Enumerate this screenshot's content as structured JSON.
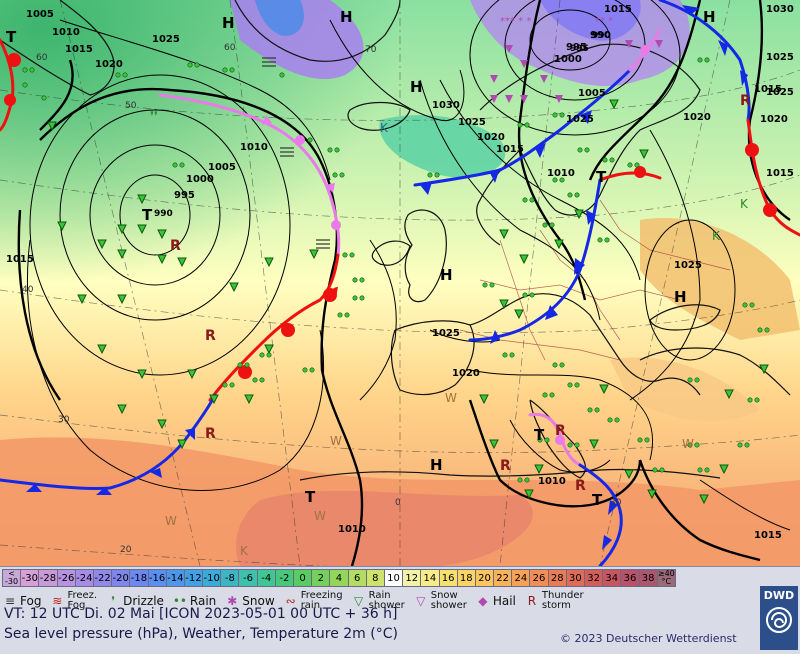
{
  "map": {
    "isobar_labels": [
      "1005",
      "1010",
      "1015",
      "1020",
      "1025",
      "1025",
      "1020",
      "1010",
      "1000",
      "995",
      "990",
      "1005",
      "995",
      "1000",
      "1005",
      "1030",
      "1025",
      "1020",
      "1015",
      "1010",
      "1020",
      "1025",
      "1030",
      "1025",
      "1015",
      "1010",
      "1015",
      "1025",
      "1020",
      "1015",
      "1025",
      "1010",
      "1015",
      "1015"
    ],
    "pressure_centers": [
      "H",
      "H",
      "H",
      "H",
      "H",
      "H",
      "H",
      "T",
      "T",
      "T",
      "T",
      "T",
      "T"
    ],
    "center_values": [
      "990",
      "995",
      "990"
    ],
    "temp_labels": [
      "60",
      "50",
      "40",
      "30",
      "20",
      "60",
      "70",
      "0",
      "30"
    ],
    "colors": {
      "front_warm": "#ee1111",
      "front_cold": "#1428e6",
      "front_occluded": "#e87be8",
      "isobar": "#000000"
    }
  },
  "legend": {
    "scale_low": "<\n-30",
    "scale": [
      "-30",
      "-28",
      "-26",
      "-24",
      "-22",
      "-20",
      "-18",
      "-16",
      "-14",
      "-12",
      "-10",
      "-8",
      "-6",
      "-4",
      "-2",
      "0",
      "2",
      "4",
      "6",
      "8",
      "10",
      "12",
      "14",
      "16",
      "18",
      "20",
      "22",
      "24",
      "26",
      "28",
      "30",
      "32",
      "34",
      "36",
      "38"
    ],
    "scale_high": "≥40\n°C",
    "weather": [
      {
        "icon": "fog-icon",
        "label": "Fog"
      },
      {
        "icon": "freezing-fog-icon",
        "label": "Freez.\nFog"
      },
      {
        "icon": "drizzle-icon",
        "label": "Drizzle"
      },
      {
        "icon": "rain-icon",
        "label": "Rain"
      },
      {
        "icon": "snow-icon",
        "label": "Snow"
      },
      {
        "icon": "freezing-rain-icon",
        "label": "Freezing\nrain"
      },
      {
        "icon": "rain-shower-icon",
        "label": "Rain\nshower"
      },
      {
        "icon": "snow-shower-icon",
        "label": "Snow\nshower"
      },
      {
        "icon": "hail-icon",
        "label": "Hail"
      },
      {
        "icon": "thunderstorm-icon",
        "label": "Thunder\nstorm"
      }
    ],
    "valid_time": "VT: 12 UTC Di.  02 Mai [ICON 2023-05-01  00 UTC + 36 h]",
    "description": "Sea level pressure (hPa), Weather, Temperature 2m (°C)",
    "copyright": "© 2023 Deutscher Wetterdienst",
    "logo": "DWD"
  }
}
